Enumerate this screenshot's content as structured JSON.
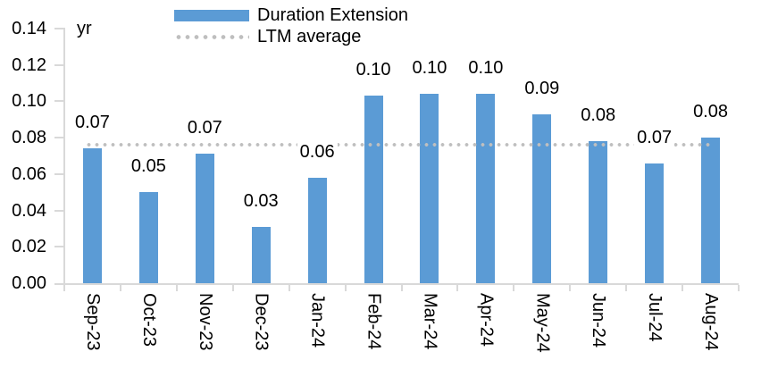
{
  "chart_data": {
    "type": "bar",
    "title": "",
    "unit_label": "yr",
    "xlabel": "",
    "ylabel": "yr",
    "categories": [
      "Sep-23",
      "Oct-23",
      "Nov-23",
      "Dec-23",
      "Jan-24",
      "Feb-24",
      "Mar-24",
      "Apr-24",
      "May-24",
      "Jun-24",
      "Jul-24",
      "Aug-24"
    ],
    "series": [
      {
        "name": "Duration Extension",
        "values": [
          0.074,
          0.05,
          0.071,
          0.031,
          0.058,
          0.103,
          0.104,
          0.104,
          0.093,
          0.078,
          0.066,
          0.08
        ],
        "labels": [
          "0.07",
          "0.05",
          "0.07",
          "0.03",
          "0.06",
          "0.10",
          "0.10",
          "0.10",
          "0.09",
          "0.08",
          "0.07",
          "0.08"
        ]
      }
    ],
    "average_line": {
      "name": "LTM average",
      "value": 0.076,
      "style": "dotted"
    },
    "ylim": [
      0,
      0.14
    ],
    "ytick_step": 0.02,
    "ytick_decimals": 2,
    "grid": false,
    "legend_position": "top",
    "colors": {
      "bar": "#5B9BD5",
      "average_dots": "#BFBFBF",
      "axis": "#D9D9D9",
      "text": "#000000",
      "background": "#FFFFFF"
    }
  }
}
